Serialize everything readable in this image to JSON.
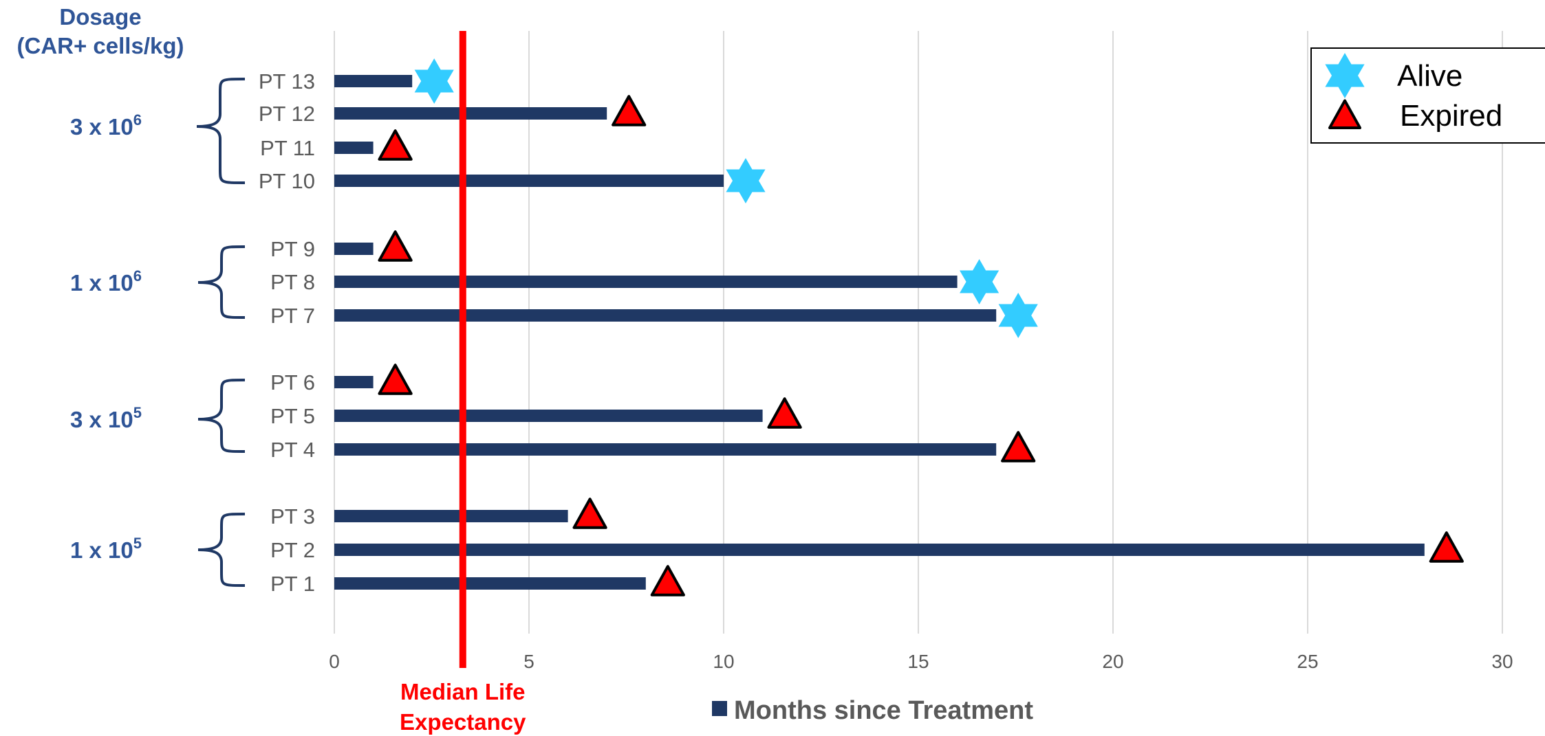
{
  "chart_data": {
    "type": "bar",
    "orientation": "horizontal",
    "title": "",
    "xlabel": "Months since Treatment",
    "xlim": [
      0,
      30
    ],
    "xticks": [
      0,
      5,
      10,
      15,
      20,
      25,
      30
    ],
    "grid": "vertical",
    "y_axis_title": "Dosage (CAR+ cells/kg)",
    "series": [
      {
        "name": "Months since Treatment",
        "color": "#1F3864"
      }
    ],
    "groups": [
      {
        "base": "3 x 10",
        "exp": "6",
        "patients": [
          "PT 13",
          "PT 12",
          "PT 11",
          "PT 10"
        ]
      },
      {
        "base": "1 x 10",
        "exp": "6",
        "patients": [
          "PT 9",
          "PT 8",
          "PT 7"
        ]
      },
      {
        "base": "3 x 10",
        "exp": "5",
        "patients": [
          "PT 6",
          "PT 5",
          "PT 4"
        ]
      },
      {
        "base": "1 x 10",
        "exp": "5",
        "patients": [
          "PT 3",
          "PT 2",
          "PT 1"
        ]
      }
    ],
    "patients": [
      {
        "label": "PT 13",
        "months": 2,
        "status": "alive"
      },
      {
        "label": "PT 12",
        "months": 7,
        "status": "expired"
      },
      {
        "label": "PT 11",
        "months": 1,
        "status": "expired"
      },
      {
        "label": "PT 10",
        "months": 10,
        "status": "alive"
      },
      {
        "label": "PT 9",
        "months": 1,
        "status": "expired"
      },
      {
        "label": "PT 8",
        "months": 16,
        "status": "alive"
      },
      {
        "label": "PT 7",
        "months": 17,
        "status": "alive"
      },
      {
        "label": "PT 6",
        "months": 1,
        "status": "expired"
      },
      {
        "label": "PT 5",
        "months": 11,
        "status": "expired"
      },
      {
        "label": "PT 4",
        "months": 17,
        "status": "expired"
      },
      {
        "label": "PT 3",
        "months": 6,
        "status": "expired"
      },
      {
        "label": "PT 2",
        "months": 28,
        "status": "expired"
      },
      {
        "label": "PT 1",
        "months": 8,
        "status": "expired"
      }
    ],
    "median_line": {
      "value": 3.3,
      "label_line1": "Median Life",
      "label_line2": "Expectancy",
      "color": "#FF0000"
    },
    "legend": {
      "position": "top-right",
      "items": [
        {
          "key": "alive",
          "label": "Alive",
          "marker": "six-point-star",
          "color": "#33CCFF"
        },
        {
          "key": "expired",
          "label": "Expired",
          "marker": "triangle",
          "color": "#FF0000"
        }
      ]
    }
  }
}
